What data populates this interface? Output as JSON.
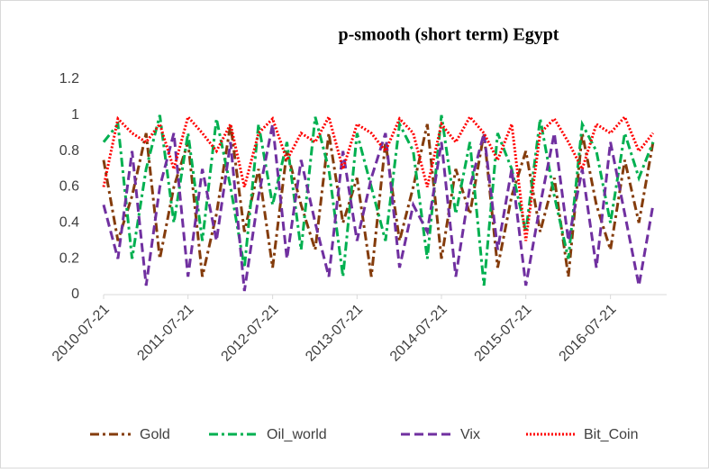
{
  "chart_data": {
    "type": "line",
    "title": "p-smooth (short term) Egypt",
    "x": [
      "2010-07-21",
      "2010-09-21",
      "2010-11-21",
      "2011-01-21",
      "2011-03-21",
      "2011-05-21",
      "2011-07-21",
      "2011-09-21",
      "2011-11-21",
      "2012-01-21",
      "2012-03-21",
      "2012-05-21",
      "2012-07-21",
      "2012-09-21",
      "2012-11-21",
      "2013-01-21",
      "2013-03-21",
      "2013-05-21",
      "2013-07-21",
      "2013-09-21",
      "2013-11-21",
      "2014-01-21",
      "2014-03-21",
      "2014-05-21",
      "2014-07-21",
      "2014-09-21",
      "2014-11-21",
      "2015-01-21",
      "2015-03-21",
      "2015-05-21",
      "2015-07-21",
      "2015-09-21",
      "2015-11-21",
      "2016-01-21",
      "2016-03-21",
      "2016-05-21",
      "2016-07-21",
      "2016-09-21",
      "2016-11-21",
      "2017-01-21"
    ],
    "series": [
      {
        "name": "Gold",
        "color": "#843c0c",
        "dash": "dash-dot",
        "values": [
          0.75,
          0.3,
          0.55,
          0.9,
          0.2,
          0.6,
          0.85,
          0.1,
          0.45,
          0.95,
          0.35,
          0.7,
          0.15,
          0.8,
          0.5,
          0.25,
          0.9,
          0.4,
          0.65,
          0.1,
          0.85,
          0.3,
          0.6,
          0.95,
          0.2,
          0.7,
          0.45,
          0.9,
          0.15,
          0.55,
          0.8,
          0.35,
          0.65,
          0.1,
          0.9,
          0.5,
          0.25,
          0.75,
          0.4,
          0.85
        ]
      },
      {
        "name": "Oil_world",
        "color": "#00b050",
        "dash": "dash-dot",
        "values": [
          0.85,
          0.95,
          0.2,
          0.7,
          1,
          0.4,
          0.9,
          0.3,
          0.98,
          0.6,
          0.15,
          0.95,
          0.5,
          0.85,
          0.25,
          0.99,
          0.7,
          0.1,
          0.9,
          0.6,
          0.3,
          0.95,
          0.8,
          0.2,
          1,
          0.45,
          0.85,
          0.05,
          0.9,
          0.7,
          0.35,
          0.98,
          0.55,
          0.2,
          0.95,
          0.8,
          0.4,
          0.9,
          0.65,
          0.85
        ]
      },
      {
        "name": "Vix",
        "color": "#7030a0",
        "dash": "dash",
        "values": [
          0.5,
          0.2,
          0.8,
          0.05,
          0.6,
          0.9,
          0.1,
          0.7,
          0.3,
          0.85,
          0.02,
          0.55,
          0.95,
          0.2,
          0.75,
          0.4,
          0.1,
          0.8,
          0.3,
          0.65,
          0.9,
          0.15,
          0.5,
          0.35,
          0.85,
          0.1,
          0.6,
          0.9,
          0.25,
          0.7,
          0.05,
          0.5,
          0.9,
          0.3,
          0.7,
          0.15,
          0.85,
          0.45,
          0.05,
          0.5
        ]
      },
      {
        "name": "Bit_Coin",
        "color": "#ff0000",
        "dash": "dot",
        "values": [
          0.6,
          0.98,
          0.9,
          0.85,
          0.95,
          0.7,
          0.99,
          0.9,
          0.8,
          0.95,
          0.6,
          0.9,
          0.98,
          0.75,
          0.9,
          0.85,
          0.99,
          0.7,
          0.95,
          0.9,
          0.8,
          0.98,
          0.9,
          0.6,
          0.95,
          0.85,
          0.99,
          0.9,
          0.75,
          0.95,
          0.3,
          0.9,
          0.98,
          0.85,
          0.7,
          0.95,
          0.9,
          0.99,
          0.8,
          0.9
        ]
      }
    ],
    "xlim": [
      "2010-07-21",
      "2017-03-21"
    ],
    "xticks": [
      "2010-07-21",
      "2011-07-21",
      "2012-07-21",
      "2013-07-21",
      "2014-07-21",
      "2015-07-21",
      "2016-07-21"
    ],
    "ylim": [
      0,
      1.2
    ],
    "yticks": [
      0,
      0.2,
      0.4,
      0.6,
      0.8,
      1,
      1.2
    ],
    "legend": "bottom"
  }
}
